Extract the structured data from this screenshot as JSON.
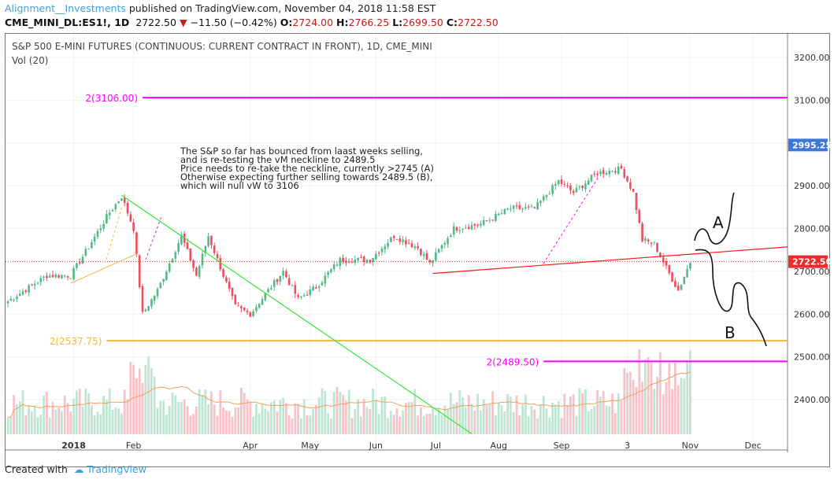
{
  "header": {
    "author": "Alignment__Investments",
    "published": "published on TradingView.com, November 04, 2018 11:58 EST",
    "symbol": "CME_MINI_DL:ES1!, 1D",
    "last": "2722.50",
    "change": "−11.50 (−0.42%)",
    "o_label": "O:",
    "o": "2724.00",
    "h_label": "H:",
    "h": "2766.25",
    "l_label": "L:",
    "l": "2699.50",
    "c_label": "C:",
    "c": "2722.50"
  },
  "footer": {
    "created": "Created with",
    "brand": "TradingView"
  },
  "colors": {
    "up": "#53b987",
    "down": "#eb4d5c",
    "magenta": "#ff00ff",
    "orange": "#f0b840",
    "green": "#33e833",
    "neck": "#ff1a1a",
    "badge_blue": "#3c78d8",
    "badge_red": "#ee2a2a"
  },
  "chart_data": {
    "type": "candlestick",
    "title": "S&P 500 E-MINI FUTURES (CONTINUOUS: CURRENT CONTRACT IN FRONT), 1D, CME_MINI",
    "volume_label": "Vol (20)",
    "ylim": [
      2320,
      3245
    ],
    "y_ticks": [
      "3200.00",
      "3100.00",
      "2900.00",
      "2800.00",
      "2700.00",
      "2600.00",
      "2500.00",
      "2400.00"
    ],
    "y_tick_values": [
      3200,
      3100,
      2900,
      2800,
      2700,
      2600,
      2500,
      2400
    ],
    "x_ticks": [
      {
        "label": "2018",
        "day": 22
      },
      {
        "label": "Feb",
        "day": 42
      },
      {
        "label": "Apr",
        "day": 81
      },
      {
        "label": "May",
        "day": 101
      },
      {
        "label": "Jun",
        "day": 123
      },
      {
        "label": "Jul",
        "day": 143
      },
      {
        "label": "Aug",
        "day": 164
      },
      {
        "label": "Sep",
        "day": 185
      },
      {
        "label": "3",
        "day": 207
      },
      {
        "label": "Nov",
        "day": 228
      },
      {
        "label": "Dec",
        "day": 249
      }
    ],
    "close_anchors": [
      [
        0,
        2630
      ],
      [
        13,
        2690
      ],
      [
        21,
        2690
      ],
      [
        26,
        2746
      ],
      [
        34,
        2838
      ],
      [
        38,
        2875
      ],
      [
        42,
        2800
      ],
      [
        45,
        2600
      ],
      [
        50,
        2655
      ],
      [
        58,
        2783
      ],
      [
        63,
        2690
      ],
      [
        67,
        2783
      ],
      [
        76,
        2617
      ],
      [
        81,
        2600
      ],
      [
        87,
        2655
      ],
      [
        92,
        2700
      ],
      [
        97,
        2635
      ],
      [
        103,
        2663
      ],
      [
        111,
        2727
      ],
      [
        121,
        2727
      ],
      [
        129,
        2783
      ],
      [
        137,
        2755
      ],
      [
        141,
        2718
      ],
      [
        149,
        2800
      ],
      [
        158,
        2810
      ],
      [
        168,
        2847
      ],
      [
        176,
        2847
      ],
      [
        184,
        2911
      ],
      [
        189,
        2884
      ],
      [
        197,
        2930
      ],
      [
        205,
        2940
      ],
      [
        209,
        2884
      ],
      [
        212,
        2773
      ],
      [
        216,
        2764
      ],
      [
        220,
        2708
      ],
      [
        224,
        2655
      ],
      [
        228,
        2722
      ]
    ],
    "badges": [
      {
        "label": "2995.25",
        "value": 2995.25,
        "color": "#3c78d8"
      },
      {
        "label": "2722.50",
        "value": 2722.5,
        "color": "#ee2a2a"
      }
    ],
    "levels": [
      {
        "label": "2(3106.00)",
        "value": 3106,
        "color": "#ff00ff",
        "from_day": 45
      },
      {
        "label": "2(2537.75)",
        "value": 2537.75,
        "color": "#f0b840",
        "from_day": 33
      },
      {
        "label": "2(2489.50)",
        "value": 2489.5,
        "color": "#ff00ff",
        "from_day": 179
      }
    ],
    "neckline": {
      "from": [
        142,
        2695
      ],
      "to": [
        260,
        2757
      ]
    },
    "trendline": {
      "from": [
        38,
        2878
      ],
      "to": [
        155,
        2320
      ]
    },
    "current_price": 2722.5,
    "annotation": "The S&P so far has bounced from laast weeks selling,\nand is re-testing the vM neckline to 2489.5\nPrice needs to re-take the neckline, currently >2745 (A)\nOtherwise expecting further selling towards 2489.5 (B),\nwhich will null vW to 3106",
    "scenario_labels": [
      "A",
      "B"
    ]
  }
}
